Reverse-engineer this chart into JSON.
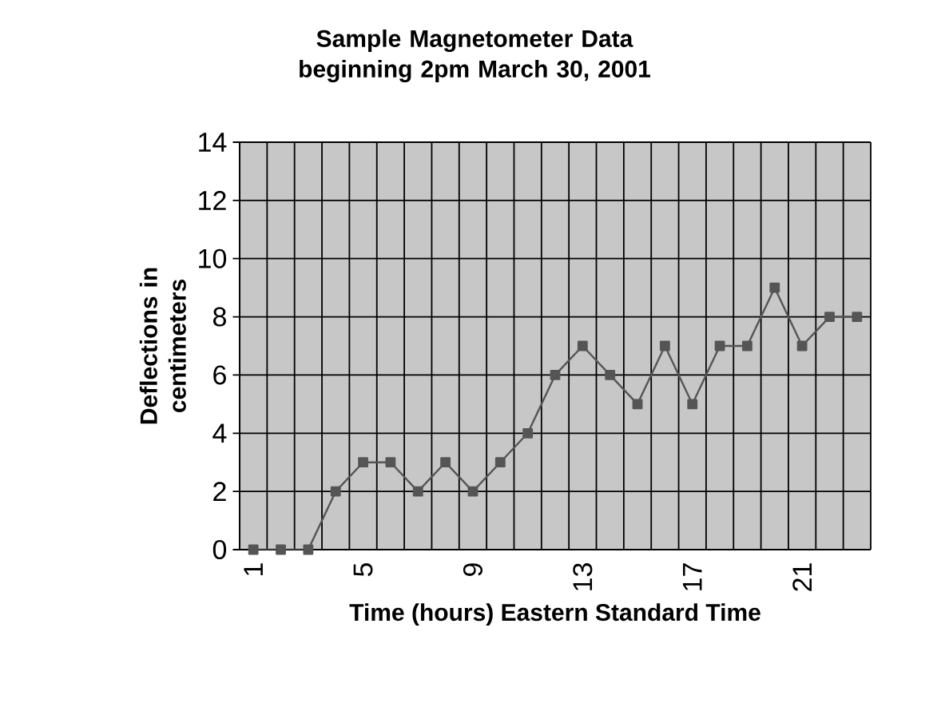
{
  "chart_data": {
    "type": "line",
    "title": "Sample Magnetometer Data beginning 2pm March 30, 2001",
    "xlabel": "Time (hours) Eastern Standard Time",
    "ylabel": "Deflections in centimeters",
    "categories": [
      "1",
      null,
      null,
      null,
      "5",
      null,
      null,
      null,
      "9",
      null,
      null,
      null,
      "13",
      null,
      null,
      null,
      "17",
      null,
      null,
      null,
      "21",
      null,
      null
    ],
    "series": [
      {
        "color": "#555555",
        "values": [
          0,
          0,
          0,
          2,
          3,
          3,
          2,
          3,
          2,
          3,
          4,
          6,
          7,
          6,
          5,
          7,
          5,
          7,
          7,
          9,
          7,
          8,
          8
        ]
      }
    ],
    "ylim": [
      0,
      14
    ],
    "yticks": [
      0,
      2,
      4,
      6,
      8,
      10,
      12,
      14
    ],
    "grid": true,
    "marker": "square",
    "line_style": "solid"
  }
}
